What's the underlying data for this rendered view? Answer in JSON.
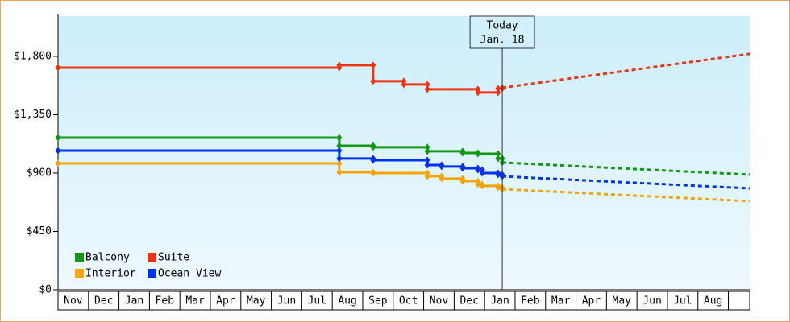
{
  "chart_data": {
    "type": "step-line",
    "months": [
      "Nov",
      "Dec",
      "Jan",
      "Feb",
      "Mar",
      "Apr",
      "May",
      "Jun",
      "Jul",
      "Aug",
      "Sep",
      "Oct",
      "Nov",
      "Dec",
      "Jan",
      "Feb",
      "Mar",
      "Apr",
      "May",
      "Jun",
      "Jul",
      "Aug"
    ],
    "xlim": [
      0,
      22.7
    ],
    "ylim": [
      0,
      2110
    ],
    "yticks": [
      {
        "value": 0,
        "label": "$0"
      },
      {
        "value": 450,
        "label": "$450"
      },
      {
        "value": 900,
        "label": "$900"
      },
      {
        "value": 1350,
        "label": "$1,350"
      },
      {
        "value": 1800,
        "label": "$1,800"
      }
    ],
    "today": {
      "x": 14.58,
      "label": "Today",
      "date": "Jan. 18"
    },
    "series": [
      {
        "name": "Balcony",
        "color": "#119911",
        "x": [
          0,
          9.23,
          10.34,
          12.12,
          13.28,
          13.78,
          14.44,
          14.58
        ],
        "values": [
          1173,
          1111,
          1099,
          1068,
          1055,
          1049,
          1012,
          981
        ],
        "forecast": {
          "x": [
            14.58,
            22.7
          ],
          "values": [
            981,
            888
          ]
        }
      },
      {
        "name": "Suite",
        "color": "#ee3311",
        "x": [
          0,
          9.23,
          10.34,
          11.35,
          12.12,
          13.78,
          14.44,
          14.58
        ],
        "values": [
          1713,
          1732,
          1608,
          1583,
          1546,
          1521,
          1552,
          1558
        ],
        "forecast": {
          "x": [
            14.58,
            22.7
          ],
          "values": [
            1558,
            1819
          ]
        }
      },
      {
        "name": "Interior",
        "color": "#f5a50a",
        "x": [
          0,
          9.23,
          10.34,
          12.12,
          12.59,
          13.28,
          13.78,
          13.92,
          14.44,
          14.58
        ],
        "values": [
          974,
          906,
          900,
          875,
          857,
          838,
          813,
          801,
          788,
          776
        ],
        "forecast": {
          "x": [
            14.58,
            22.7
          ],
          "values": [
            776,
            683
          ]
        }
      },
      {
        "name": "Ocean View",
        "color": "#0033ee",
        "x": [
          0,
          9.23,
          10.34,
          12.12,
          12.59,
          13.28,
          13.78,
          13.92,
          14.44,
          14.58
        ],
        "values": [
          1074,
          1012,
          999,
          962,
          950,
          937,
          925,
          900,
          888,
          875
        ],
        "forecast": {
          "x": [
            14.58,
            22.7
          ],
          "values": [
            875,
            782
          ]
        }
      }
    ]
  }
}
